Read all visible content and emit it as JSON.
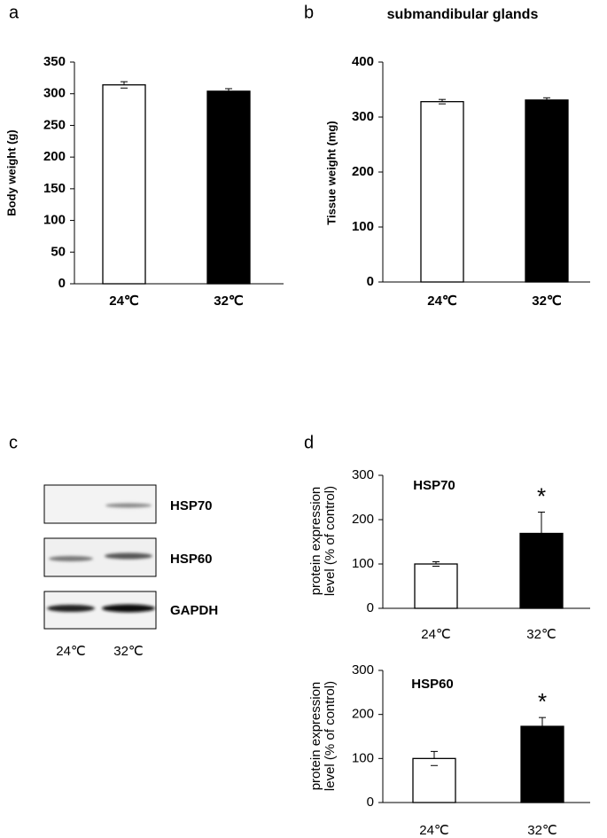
{
  "panels": [
    "a",
    "b",
    "c",
    "d"
  ],
  "chart_data": [
    {
      "type": "bar",
      "ylabel": [
        "Body weight (g)"
      ],
      "categories": [
        "24℃",
        "32℃"
      ],
      "values": [
        314,
        304
      ],
      "errors": [
        5,
        4
      ],
      "colors": [
        "#ffffff",
        "#000000"
      ],
      "ylim": [
        0,
        350
      ],
      "yticks": [
        0,
        50,
        100,
        150,
        200,
        250,
        300,
        350
      ]
    },
    {
      "type": "bar",
      "title": "submandibular glands",
      "ylabel": [
        "Tissue weight (mg)"
      ],
      "categories": [
        "24℃",
        "32℃"
      ],
      "values": [
        328,
        331
      ],
      "errors": [
        4,
        4
      ],
      "colors": [
        "#ffffff",
        "#000000"
      ],
      "ylim": [
        0,
        400
      ],
      "yticks": [
        0,
        100,
        200,
        300,
        400
      ]
    },
    {
      "type": "bar",
      "annotation": "HSP70",
      "ylabel": [
        "protein expression",
        "level (% of control)"
      ],
      "categories": [
        "24℃",
        "32℃"
      ],
      "values": [
        100,
        169
      ],
      "errors": [
        5,
        48
      ],
      "significance": [
        null,
        "*"
      ],
      "colors": [
        "#ffffff",
        "#000000"
      ],
      "ylim": [
        0,
        300
      ],
      "yticks": [
        0,
        100,
        200,
        300
      ]
    },
    {
      "type": "bar",
      "annotation": "HSP60",
      "ylabel": [
        "protein expression",
        "level (% of control)"
      ],
      "categories": [
        "24℃",
        "32℃"
      ],
      "values": [
        100,
        173
      ],
      "errors": [
        16,
        20
      ],
      "significance": [
        null,
        "*"
      ],
      "colors": [
        "#ffffff",
        "#000000"
      ],
      "ylim": [
        0,
        300
      ],
      "yticks": [
        0,
        100,
        200,
        300
      ]
    }
  ],
  "blot": {
    "rows": [
      "HSP70",
      "HSP60",
      "GAPDH"
    ],
    "lanes": [
      "24℃",
      "32℃"
    ]
  }
}
